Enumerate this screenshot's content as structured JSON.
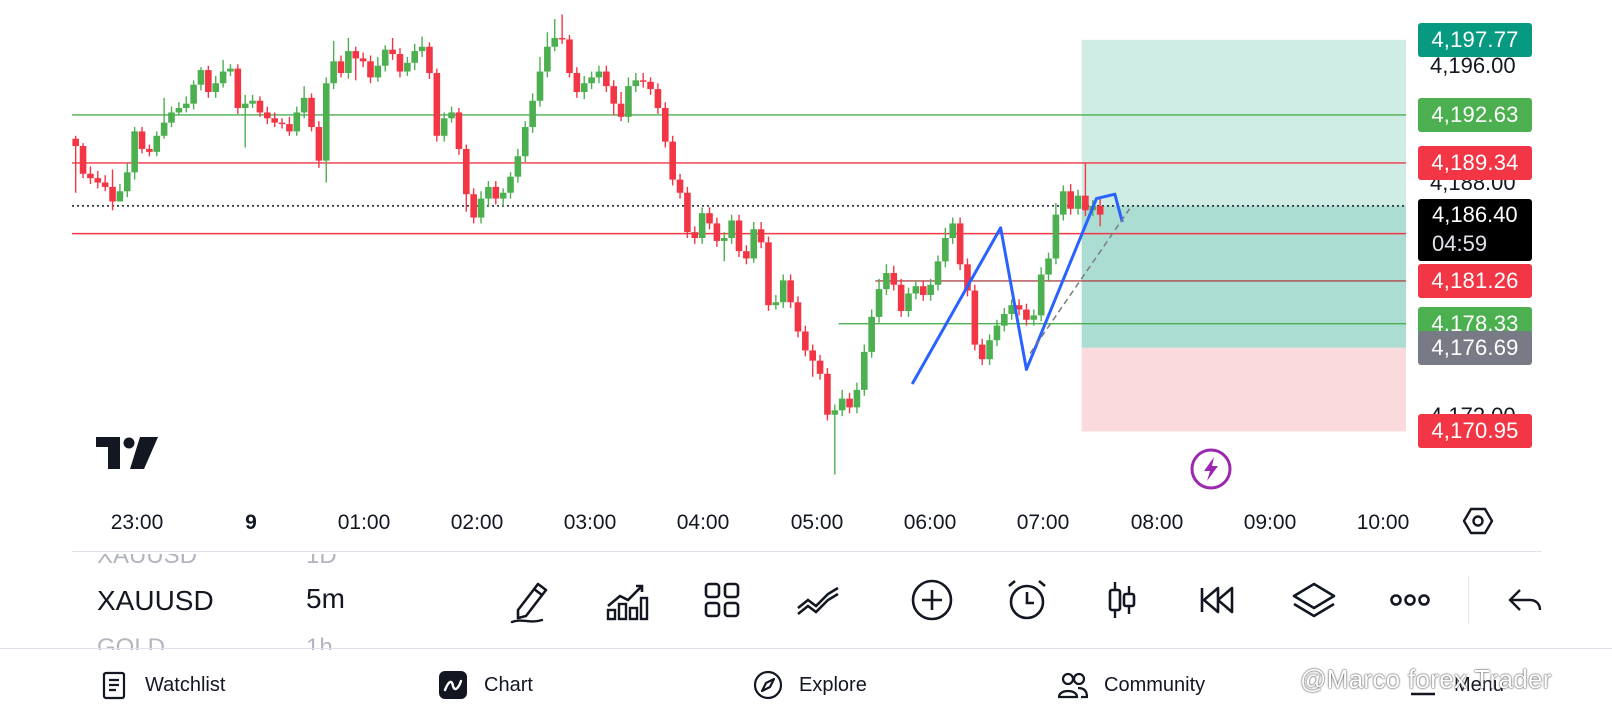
{
  "chart": {
    "symbol": "XAUUSD",
    "interval": "5m",
    "price_labels": [
      {
        "name": "top",
        "text": "4,197.77",
        "value": 4197.77,
        "color": "#089981"
      },
      {
        "name": "green-line-1",
        "text": "4,192.63",
        "value": 4192.63,
        "color": "#4caf50"
      },
      {
        "name": "red-line-1",
        "text": "4,189.34",
        "value": 4189.34,
        "color": "#f23645"
      },
      {
        "name": "red-line-2",
        "text": "4,184.50",
        "value": 4184.5,
        "color": "#f23645"
      },
      {
        "name": "red-line-3",
        "text": "4,181.26",
        "value": 4181.26,
        "color": "#f23645"
      },
      {
        "name": "green-line-2",
        "text": "4,178.33",
        "value": 4178.33,
        "color": "#4caf50"
      },
      {
        "name": "entry",
        "text": "4,176.69",
        "value": 4176.69,
        "color": "#787b86"
      },
      {
        "name": "stop",
        "text": "4,170.95",
        "value": 4170.95,
        "color": "#f23645"
      }
    ],
    "scale_ticks": [
      {
        "text": "4,196.00",
        "value": 4196.0
      },
      {
        "text": "4,188.00",
        "value": 4188.0
      },
      {
        "text": "4,172.00",
        "value": 4172.0
      }
    ],
    "current_price": {
      "text": "4,186.40",
      "value": 4186.4,
      "countdown": "04:59"
    },
    "time_labels": [
      {
        "text": "23:00",
        "bold": false
      },
      {
        "text": "9",
        "bold": true
      },
      {
        "text": "01:00",
        "bold": false
      },
      {
        "text": "02:00",
        "bold": false
      },
      {
        "text": "03:00",
        "bold": false
      },
      {
        "text": "04:00",
        "bold": false
      },
      {
        "text": "05:00",
        "bold": false
      },
      {
        "text": "06:00",
        "bold": false
      },
      {
        "text": "07:00",
        "bold": false
      },
      {
        "text": "08:00",
        "bold": false
      },
      {
        "text": "09:00",
        "bold": false
      },
      {
        "text": "10:00",
        "bold": false
      }
    ],
    "candles": [
      [
        4191.0,
        4190.5,
        4191.2,
        4187.3
      ],
      [
        4190.5,
        4188.6,
        4190.7,
        4188.3
      ],
      [
        4188.6,
        4188.3,
        4189.1,
        4187.9
      ],
      [
        4188.3,
        4188.0,
        4188.8,
        4187.6
      ],
      [
        4188.0,
        4187.7,
        4188.5,
        4187.4
      ],
      [
        4187.7,
        4186.7,
        4188.9,
        4186.1
      ],
      [
        4186.7,
        4187.4,
        4187.9,
        4186.9
      ],
      [
        4187.4,
        4188.7,
        4189.3,
        4187.0
      ],
      [
        4188.7,
        4191.5,
        4191.8,
        4188.2
      ],
      [
        4191.5,
        4190.3,
        4191.8,
        4190.0
      ],
      [
        4190.3,
        4190.1,
        4190.6,
        4189.8
      ],
      [
        4190.1,
        4191.2,
        4191.5,
        4189.8
      ],
      [
        4191.2,
        4192.1,
        4193.8,
        4191.0
      ],
      [
        4192.1,
        4192.8,
        4193.2,
        4191.8
      ],
      [
        4192.8,
        4193.1,
        4193.5,
        4192.6
      ],
      [
        4193.1,
        4193.4,
        4193.9,
        4192.8
      ],
      [
        4193.4,
        4194.7,
        4195.0,
        4193.0
      ],
      [
        4194.7,
        4195.7,
        4195.9,
        4194.3
      ],
      [
        4195.7,
        4194.2,
        4196.0,
        4193.8
      ],
      [
        4194.2,
        4194.8,
        4195.3,
        4193.8
      ],
      [
        4194.8,
        4195.6,
        4196.4,
        4194.5
      ],
      [
        4195.6,
        4195.8,
        4196.1,
        4195.3
      ],
      [
        4195.8,
        4193.1,
        4196.1,
        4192.7
      ],
      [
        4193.1,
        4193.4,
        4194.0,
        4190.4
      ],
      [
        4193.4,
        4193.6,
        4194.0,
        4193.1
      ],
      [
        4193.6,
        4192.8,
        4193.9,
        4192.5
      ],
      [
        4192.8,
        4192.4,
        4193.2,
        4192.0
      ],
      [
        4192.4,
        4192.1,
        4192.8,
        4191.8
      ],
      [
        4192.1,
        4192.0,
        4192.4,
        4191.7
      ],
      [
        4192.0,
        4191.5,
        4192.5,
        4191.2
      ],
      [
        4191.5,
        4192.8,
        4193.2,
        4191.2
      ],
      [
        4192.8,
        4193.8,
        4194.6,
        4192.4
      ],
      [
        4193.8,
        4191.8,
        4194.1,
        4191.5
      ],
      [
        4191.8,
        4189.5,
        4192.2,
        4189.0
      ],
      [
        4189.5,
        4194.8,
        4195.2,
        4188.0
      ],
      [
        4194.8,
        4196.3,
        4197.7,
        4194.4
      ],
      [
        4196.3,
        4195.5,
        4196.7,
        4195.2
      ],
      [
        4195.5,
        4197.0,
        4197.9,
        4195.1
      ],
      [
        4197.0,
        4196.5,
        4197.3,
        4195.0
      ],
      [
        4196.5,
        4196.3,
        4196.9,
        4195.9
      ],
      [
        4196.3,
        4195.2,
        4196.7,
        4194.8
      ],
      [
        4195.2,
        4196.0,
        4196.6,
        4194.9
      ],
      [
        4196.0,
        4197.1,
        4197.4,
        4195.6
      ],
      [
        4197.1,
        4196.8,
        4197.9,
        4196.4
      ],
      [
        4196.8,
        4195.6,
        4197.2,
        4195.2
      ],
      [
        4195.6,
        4196.2,
        4196.6,
        4195.3
      ],
      [
        4196.2,
        4197.0,
        4197.5,
        4195.7
      ],
      [
        4197.0,
        4197.3,
        4198.0,
        4196.6
      ],
      [
        4197.3,
        4195.5,
        4197.6,
        4195.1
      ],
      [
        4195.5,
        4191.2,
        4195.8,
        4190.8
      ],
      [
        4191.2,
        4192.4,
        4192.8,
        4190.8
      ],
      [
        4192.4,
        4192.8,
        4193.2,
        4192.1
      ],
      [
        4192.8,
        4190.3,
        4193.1,
        4189.9
      ],
      [
        4190.3,
        4187.2,
        4190.6,
        4186.0
      ],
      [
        4187.2,
        4185.6,
        4187.6,
        4185.2
      ],
      [
        4185.6,
        4186.9,
        4187.4,
        4185.2
      ],
      [
        4186.9,
        4187.7,
        4188.1,
        4186.4
      ],
      [
        4187.7,
        4186.9,
        4188.1,
        4186.5
      ],
      [
        4186.9,
        4187.3,
        4187.6,
        4186.4
      ],
      [
        4187.3,
        4188.4,
        4188.7,
        4186.9
      ],
      [
        4188.4,
        4189.8,
        4190.3,
        4188.0
      ],
      [
        4189.8,
        4191.8,
        4192.2,
        4189.4
      ],
      [
        4191.8,
        4193.6,
        4194.1,
        4191.4
      ],
      [
        4193.6,
        4195.6,
        4196.6,
        4193.2
      ],
      [
        4195.6,
        4197.3,
        4198.3,
        4195.2
      ],
      [
        4197.3,
        4197.9,
        4199.2,
        4197.0
      ],
      [
        4197.9,
        4197.8,
        4199.5,
        4197.5
      ],
      [
        4197.8,
        4195.5,
        4198.1,
        4195.2
      ],
      [
        4195.5,
        4194.2,
        4195.9,
        4193.8
      ],
      [
        4194.2,
        4194.8,
        4195.3,
        4193.7
      ],
      [
        4194.8,
        4195.2,
        4195.6,
        4194.4
      ],
      [
        4195.2,
        4195.6,
        4196.0,
        4194.8
      ],
      [
        4195.6,
        4194.6,
        4196.0,
        4194.2
      ],
      [
        4194.6,
        4193.4,
        4195.0,
        4192.6
      ],
      [
        4193.4,
        4192.5,
        4194.2,
        4192.2
      ],
      [
        4192.5,
        4194.6,
        4195.2,
        4192.1
      ],
      [
        4194.6,
        4195.0,
        4195.5,
        4194.2
      ],
      [
        4195.0,
        4194.9,
        4195.5,
        4194.5
      ],
      [
        4194.9,
        4194.4,
        4195.2,
        4194.0
      ],
      [
        4194.4,
        4193.1,
        4194.8,
        4192.7
      ],
      [
        4193.1,
        4190.8,
        4193.5,
        4190.4
      ],
      [
        4190.8,
        4188.2,
        4191.2,
        4187.8
      ],
      [
        4188.2,
        4187.3,
        4188.6,
        4186.9
      ],
      [
        4187.3,
        4184.6,
        4187.7,
        4184.2
      ],
      [
        4184.6,
        4184.2,
        4185.0,
        4183.8
      ],
      [
        4184.2,
        4185.9,
        4186.3,
        4183.8
      ],
      [
        4185.9,
        4185.2,
        4186.3,
        4184.8
      ],
      [
        4185.2,
        4184.0,
        4185.6,
        4183.6
      ],
      [
        4184.0,
        4184.2,
        4184.6,
        4182.6
      ],
      [
        4184.2,
        4185.4,
        4185.8,
        4183.8
      ],
      [
        4185.4,
        4183.3,
        4185.8,
        4182.9
      ],
      [
        4183.3,
        4182.8,
        4183.7,
        4182.4
      ],
      [
        4182.8,
        4184.8,
        4185.3,
        4182.5
      ],
      [
        4184.8,
        4183.9,
        4185.3,
        4183.5
      ],
      [
        4183.9,
        4179.6,
        4184.3,
        4179.2
      ],
      [
        4179.6,
        4179.8,
        4180.3,
        4179.3
      ],
      [
        4179.8,
        4181.3,
        4181.7,
        4179.4
      ],
      [
        4181.3,
        4179.8,
        4181.7,
        4179.4
      ],
      [
        4179.8,
        4177.8,
        4180.2,
        4177.4
      ],
      [
        4177.8,
        4176.5,
        4178.2,
        4176.1
      ],
      [
        4176.5,
        4175.8,
        4176.9,
        4174.7
      ],
      [
        4175.8,
        4174.9,
        4176.2,
        4174.5
      ],
      [
        4174.9,
        4172.1,
        4175.3,
        4171.7
      ],
      [
        4172.1,
        4172.4,
        4172.8,
        4168.0
      ],
      [
        4172.4,
        4173.2,
        4173.8,
        4172.0
      ],
      [
        4173.2,
        4172.6,
        4173.6,
        4172.2
      ],
      [
        4172.6,
        4173.8,
        4174.3,
        4172.2
      ],
      [
        4173.8,
        4176.4,
        4176.9,
        4173.4
      ],
      [
        4176.4,
        4178.8,
        4179.3,
        4176.0
      ],
      [
        4178.8,
        4180.7,
        4181.4,
        4178.4
      ],
      [
        4180.7,
        4181.8,
        4182.4,
        4180.3
      ],
      [
        4181.8,
        4181.0,
        4182.3,
        4180.6
      ],
      [
        4181.0,
        4179.2,
        4181.4,
        4178.8
      ],
      [
        4179.2,
        4180.4,
        4180.8,
        4178.8
      ],
      [
        4180.4,
        4180.9,
        4181.3,
        4180.0
      ],
      [
        4180.9,
        4180.3,
        4181.3,
        4179.9
      ],
      [
        4180.3,
        4181.0,
        4181.4,
        4179.9
      ],
      [
        4181.0,
        4182.6,
        4183.0,
        4180.6
      ],
      [
        4182.6,
        4184.2,
        4184.9,
        4182.2
      ],
      [
        4184.2,
        4185.2,
        4185.6,
        4183.8
      ],
      [
        4185.2,
        4182.4,
        4185.6,
        4182.0
      ],
      [
        4182.4,
        4180.6,
        4182.8,
        4180.2
      ],
      [
        4180.6,
        4176.9,
        4181.0,
        4176.5
      ],
      [
        4176.9,
        4175.9,
        4177.3,
        4175.5
      ],
      [
        4175.9,
        4177.2,
        4177.6,
        4175.5
      ],
      [
        4177.2,
        4178.2,
        4178.6,
        4176.8
      ],
      [
        4178.2,
        4179.0,
        4179.4,
        4177.8
      ],
      [
        4179.0,
        4179.6,
        4180.0,
        4178.6
      ],
      [
        4179.6,
        4179.3,
        4180.0,
        4178.9
      ],
      [
        4179.3,
        4178.6,
        4179.7,
        4178.2
      ],
      [
        4178.6,
        4178.9,
        4179.3,
        4178.2
      ],
      [
        4178.9,
        4181.7,
        4182.2,
        4178.5
      ],
      [
        4181.7,
        4182.8,
        4183.2,
        4181.3
      ],
      [
        4182.8,
        4185.8,
        4186.6,
        4182.4
      ],
      [
        4185.8,
        4187.4,
        4187.8,
        4185.4
      ],
      [
        4187.4,
        4186.2,
        4187.9,
        4185.8
      ],
      [
        4186.2,
        4187.1,
        4187.5,
        4185.8
      ],
      [
        4187.1,
        4186.1,
        4189.3,
        4185.7
      ],
      [
        4186.1,
        4186.4,
        4186.8,
        4185.7
      ],
      [
        4186.4,
        4185.8,
        4186.9,
        4185.0
      ]
    ],
    "x_range": [
      0,
      181
    ],
    "y_range": [
      4166.6,
      4200.5
    ],
    "position": {
      "start_index": 137,
      "end_index": 181,
      "entry": 4176.69,
      "target": 4197.77,
      "stop": 4170.95
    }
  },
  "toolbar": {
    "symbols": [
      "XAUUSD",
      "GOLD"
    ],
    "intervals": [
      "1D",
      "5m",
      "1h"
    ],
    "tools": [
      "pencil-icon",
      "indicators-icon",
      "layout-grid-icon",
      "trend-lines-icon",
      "add-icon",
      "alarm-icon",
      "candle-type-icon",
      "replay-icon",
      "layers-icon",
      "more-icon",
      "undo-icon"
    ]
  },
  "nav": {
    "items": [
      {
        "label": "Watchlist",
        "icon": "watchlist-icon"
      },
      {
        "label": "Chart",
        "icon": "chart-icon"
      },
      {
        "label": "Explore",
        "icon": "compass-icon"
      },
      {
        "label": "Community",
        "icon": "community-icon"
      },
      {
        "label": "Menu",
        "icon": "menu-icon"
      }
    ],
    "watermark": "@Marco forex Trader"
  },
  "colors": {
    "up": "#4caf50",
    "down": "#f23645",
    "target_zone": "#bfe6dc",
    "stop_zone": "#fbdadd",
    "pattern": "#2962ff"
  }
}
